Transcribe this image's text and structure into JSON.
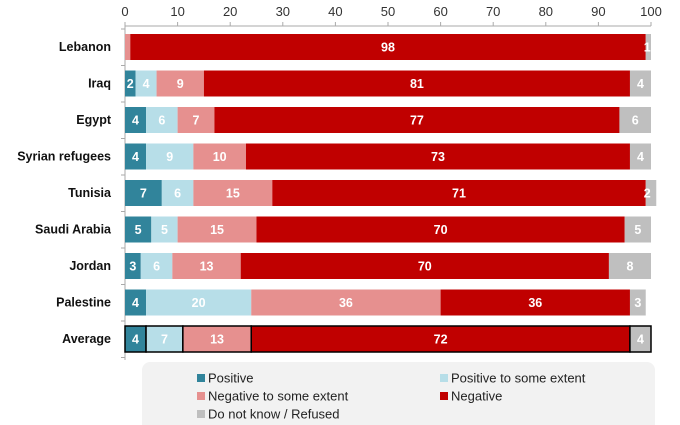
{
  "chart_data": {
    "type": "bar",
    "orientation": "horizontal",
    "stacked": true,
    "xlim": [
      0,
      100
    ],
    "x_ticks": [
      0,
      10,
      20,
      30,
      40,
      50,
      60,
      70,
      80,
      90,
      100
    ],
    "categories": [
      "Lebanon",
      "Iraq",
      "Egypt",
      "Syrian refugees",
      "Tunisia",
      "Saudi Arabia",
      "Jordan",
      "Palestine",
      "Average"
    ],
    "series": [
      {
        "name": "Positive",
        "color": "#31849B",
        "values": [
          0,
          2,
          4,
          4,
          7,
          5,
          3,
          4,
          4
        ]
      },
      {
        "name": "Positive to some extent",
        "color": "#B7DEE8",
        "values": [
          0,
          4,
          6,
          9,
          6,
          5,
          6,
          20,
          7
        ]
      },
      {
        "name": "Negative to some extent",
        "color": "#E6908F",
        "values": [
          1,
          9,
          7,
          10,
          15,
          15,
          13,
          36,
          13
        ]
      },
      {
        "name": "Negative",
        "color": "#C00000",
        "values": [
          98,
          81,
          77,
          73,
          71,
          70,
          70,
          36,
          72
        ]
      },
      {
        "name": "Do not know / Refused",
        "color": "#BFBFBF",
        "values": [
          1,
          4,
          6,
          4,
          2,
          5,
          8,
          3,
          4
        ]
      }
    ],
    "legend_position": "bottom",
    "grid": false
  }
}
